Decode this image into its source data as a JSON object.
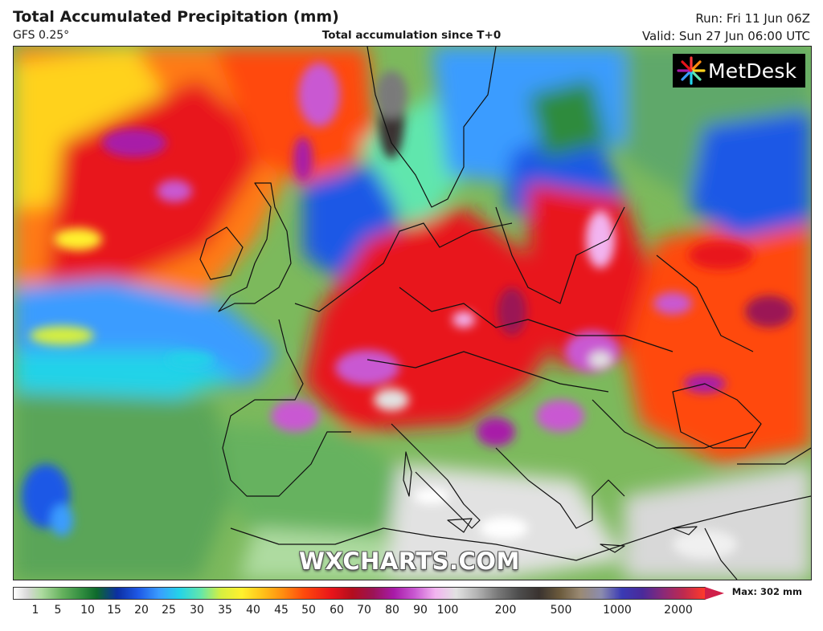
{
  "header": {
    "title": "Total Accumulated Precipitation (mm)",
    "model": "GFS 0.25°",
    "subtitle": "Total accumulation since T+0",
    "run": "Run: Fri 11 Jun 06Z",
    "valid": "Valid: Sun 27 Jun 06:00 UTC"
  },
  "logo": {
    "text": "MetDesk",
    "icon": "metdesk-starburst-logo"
  },
  "watermark": "WXCHARTS.COM",
  "legend": {
    "max_label": "Max: 302 mm",
    "ticks": [
      "1",
      "5",
      "10",
      "15",
      "20",
      "25",
      "30",
      "35",
      "40",
      "45",
      "50",
      "60",
      "70",
      "80",
      "90",
      "100",
      "200",
      "500",
      "1000",
      "2000"
    ]
  },
  "colors": {
    "ocean_green": "#7cb95c",
    "heavy_red": "#e8141a",
    "extreme_magenta": "#c958d2",
    "dry_white": "#f0f0f0",
    "moderate_blue": "#3a9cff"
  }
}
